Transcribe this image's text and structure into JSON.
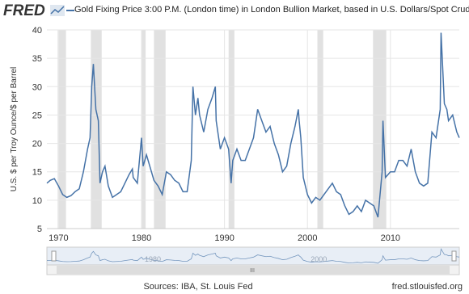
{
  "chart_data": {
    "type": "line",
    "brand": "FRED",
    "ylabel": "U.S. $ per Troy Ounce/$ per Barrel",
    "source": "Sources: IBA, St. Louis Fed",
    "url": "fred.stlouisfed.org",
    "xlim": [
      1968.6,
      2018.3
    ],
    "ylim": [
      5,
      40
    ],
    "xticks": [
      1970,
      1980,
      1990,
      2000,
      2010
    ],
    "yticks": [
      5,
      10,
      15,
      20,
      25,
      30,
      35,
      40
    ],
    "grid": true,
    "recessions": [
      [
        1969.9,
        1970.9
      ],
      [
        1973.9,
        1975.2
      ],
      [
        1980.0,
        1980.5
      ],
      [
        1981.5,
        1982.9
      ],
      [
        1990.5,
        1991.2
      ],
      [
        2001.2,
        2001.9
      ],
      [
        2007.9,
        2009.5
      ]
    ],
    "x": [
      1968.6,
      1969,
      1969.5,
      1970,
      1970.5,
      1971,
      1971.5,
      1972,
      1972.5,
      1973,
      1973.5,
      1973.8,
      1974,
      1974.2,
      1974.5,
      1974.8,
      1975,
      1975.3,
      1975.6,
      1976,
      1976.5,
      1977,
      1977.5,
      1978,
      1978.5,
      1978.9,
      1979,
      1979.5,
      1980,
      1980.2,
      1980.6,
      1981,
      1981.5,
      1982,
      1982.5,
      1983,
      1983.5,
      1984,
      1984.5,
      1985,
      1985.5,
      1986,
      1986.2,
      1986.5,
      1986.8,
      1987,
      1987.5,
      1988,
      1988.5,
      1988.9,
      1989,
      1989.5,
      1990,
      1990.5,
      1990.8,
      1991,
      1991.5,
      1992,
      1992.5,
      1993,
      1993.5,
      1994,
      1994.5,
      1995,
      1995.5,
      1996,
      1996.5,
      1997,
      1997.5,
      1998,
      1998.5,
      1998.9,
      1999,
      1999.2,
      1999.5,
      2000,
      2000.5,
      2001,
      2001.5,
      2002,
      2002.5,
      2003,
      2003.5,
      2004,
      2004.5,
      2005,
      2005.5,
      2006,
      2006.5,
      2007,
      2007.5,
      2008,
      2008.5,
      2009,
      2009.1,
      2009.4,
      2010,
      2010.5,
      2011,
      2011.5,
      2012,
      2012.5,
      2013,
      2013.5,
      2014,
      2014.5,
      2015,
      2015.5,
      2016,
      2016.1,
      2016.5,
      2016.8,
      2017,
      2017.5,
      2018,
      2018.3
    ],
    "series": [
      {
        "name": "Gold Fixing Price 3:00 P.M. (London time) in London Bullion Market, based in U.S. Dollars/Spot Crude Oil P",
        "color": "#4572a7",
        "values": [
          13,
          13.5,
          13.8,
          12.5,
          11,
          10.5,
          10.8,
          11.5,
          12,
          15,
          19,
          21,
          30,
          34,
          26,
          24,
          13,
          15,
          16,
          12.5,
          10.5,
          11,
          11.5,
          13,
          14.5,
          15.5,
          14,
          13,
          21,
          16,
          18,
          16,
          13.5,
          12.5,
          11,
          15,
          14.5,
          13.5,
          13,
          11.5,
          11.5,
          17,
          30,
          25,
          28,
          25,
          22,
          26,
          28,
          30,
          24,
          19,
          21,
          19,
          13,
          17,
          19,
          17,
          17,
          19,
          21,
          26,
          24,
          22,
          23,
          20,
          18,
          15,
          16,
          20,
          23,
          26,
          24,
          21,
          14,
          11,
          9.5,
          10.5,
          10,
          11,
          12,
          13,
          11.5,
          11,
          9,
          7.5,
          8,
          9,
          8,
          10,
          9.5,
          9,
          7,
          15,
          24,
          14,
          15,
          15,
          17,
          17,
          16,
          19,
          15,
          13,
          12.5,
          13,
          22,
          21,
          26,
          39.5,
          27,
          26,
          24,
          25,
          22,
          21
        ]
      }
    ]
  }
}
